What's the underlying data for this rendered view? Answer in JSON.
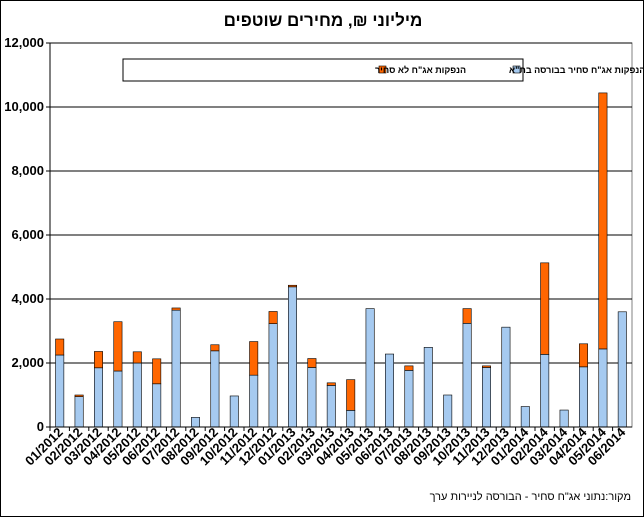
{
  "chart_data": {
    "type": "bar",
    "stacked": true,
    "title": "מיליוני ₪, מחירים שוטפים",
    "xlabel": "",
    "ylabel": "",
    "ylim": [
      0,
      12000
    ],
    "yticks": [
      0,
      2000,
      4000,
      6000,
      8000,
      10000,
      12000
    ],
    "ytick_labels": [
      "0",
      "2,000",
      "4,000",
      "6,000",
      "8,000",
      "10,000",
      "12,000"
    ],
    "grid": true,
    "legend_position": "top",
    "categories": [
      "01/2012",
      "02/2012",
      "03/2012",
      "04/2012",
      "05/2012",
      "06/2012",
      "07/2012",
      "08/2012",
      "09/2012",
      "10/2012",
      "11/2012",
      "12/2012",
      "01/2013",
      "02/2013",
      "03/2013",
      "04/2013",
      "05/2013",
      "06/2013",
      "07/2013",
      "08/2013",
      "09/2013",
      "10/2013",
      "11/2013",
      "12/2013",
      "01/2014",
      "02/2014",
      "03/2014",
      "04/2014",
      "05/2014",
      "06/2014"
    ],
    "series": [
      {
        "name": "הנפקות אג\"ח סחיר בבורסה בת\"א",
        "color": "#a6caf0",
        "values": [
          2250,
          950,
          1850,
          1750,
          2000,
          1350,
          3650,
          300,
          2380,
          970,
          1620,
          3230,
          4380,
          1860,
          1300,
          520,
          3700,
          2280,
          1770,
          2490,
          1000,
          3240,
          1860,
          3120,
          640,
          2270,
          530,
          1880,
          2440,
          3600
        ]
      },
      {
        "name": "הנפקות אג\"ח לא סחיר",
        "color": "#ff6600",
        "values": [
          500,
          50,
          510,
          1540,
          350,
          780,
          70,
          0,
          190,
          0,
          1050,
          380,
          50,
          280,
          80,
          960,
          0,
          0,
          140,
          0,
          0,
          460,
          50,
          0,
          0,
          2860,
          0,
          720,
          8000,
          0
        ]
      }
    ]
  },
  "source_note": "מקור:נתוני אג\"ח סחיר - הבורסה לניירות ערך"
}
